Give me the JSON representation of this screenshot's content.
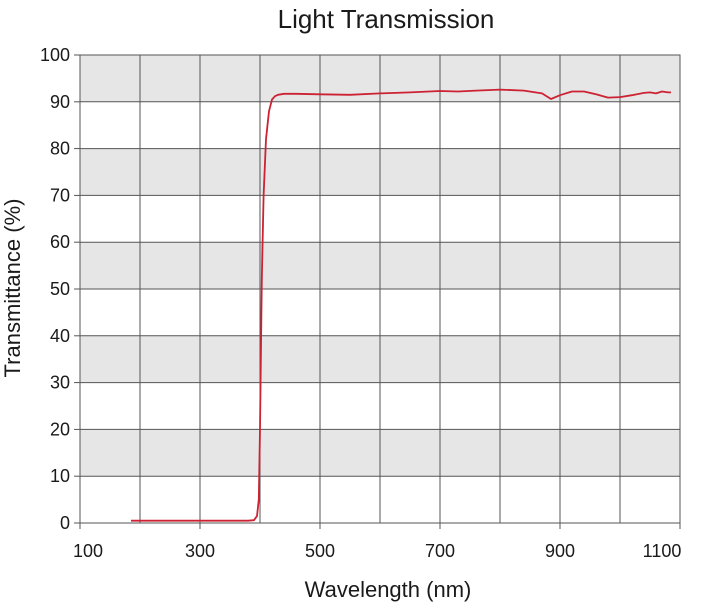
{
  "chart_data": {
    "type": "line",
    "title": "Light Transmission",
    "xlabel": "Wavelength (nm)",
    "ylabel": "Transmittance (%)",
    "xlim": [
      100,
      1100
    ],
    "ylim": [
      0,
      100
    ],
    "x_ticks": [
      100,
      300,
      500,
      700,
      900,
      1100
    ],
    "x_tick_labels": [
      "100",
      "300",
      "500",
      "700",
      "900",
      "1100"
    ],
    "x_grid_step": 100,
    "y_ticks": [
      0,
      10,
      20,
      30,
      40,
      50,
      60,
      70,
      80,
      90,
      100
    ],
    "y_tick_labels": [
      "0",
      "10",
      "20",
      "30",
      "40",
      "50",
      "60",
      "70",
      "80",
      "90",
      "100"
    ],
    "grid": true,
    "band_colors": [
      "#e6e6e6",
      "#ffffff"
    ],
    "line_color": "#cc2233",
    "series": [
      {
        "x": [
          185,
          250,
          300,
          350,
          380,
          390,
          395,
          398,
          400,
          403,
          406,
          410,
          415,
          420,
          425,
          430,
          440,
          460,
          500,
          550,
          600,
          650,
          700,
          730,
          760,
          800,
          840,
          870,
          885,
          900,
          920,
          940,
          960,
          980,
          1000,
          1020,
          1040,
          1050,
          1060,
          1070,
          1080,
          1085
        ],
        "y": [
          0.5,
          0.5,
          0.5,
          0.5,
          0.5,
          0.6,
          1.5,
          5,
          20,
          52,
          70,
          82,
          88,
          90.5,
          91.2,
          91.5,
          91.7,
          91.7,
          91.6,
          91.5,
          91.8,
          92.0,
          92.3,
          92.2,
          92.4,
          92.6,
          92.4,
          91.8,
          90.6,
          91.4,
          92.2,
          92.2,
          91.6,
          90.9,
          91.0,
          91.4,
          91.9,
          92.0,
          91.8,
          92.2,
          92.0,
          92.0
        ]
      }
    ]
  }
}
